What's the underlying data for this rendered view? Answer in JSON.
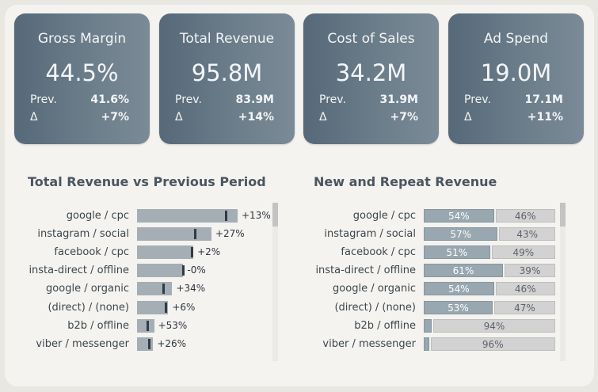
{
  "kpis": [
    {
      "title": "Gross Margin",
      "value": "44.5%",
      "prev_label": "Prev.",
      "prev_value": "41.6%",
      "delta_label": "Δ",
      "delta_value": "+7%"
    },
    {
      "title": "Total Revenue",
      "value": "95.8M",
      "prev_label": "Prev.",
      "prev_value": "83.9M",
      "delta_label": "Δ",
      "delta_value": "+14%"
    },
    {
      "title": "Cost of Sales",
      "value": "34.2M",
      "prev_label": "Prev.",
      "prev_value": "31.9M",
      "delta_label": "Δ",
      "delta_value": "+7%"
    },
    {
      "title": "Ad Spend",
      "value": "19.0M",
      "prev_label": "Prev.",
      "prev_value": "17.1M",
      "delta_label": "Δ",
      "delta_value": "+11%"
    }
  ],
  "revenue_chart": {
    "title": "Total Revenue vs Previous Period",
    "rows": [
      {
        "label": "google / cpc",
        "current": 1.0,
        "previous": 0.885,
        "delta": "+13%"
      },
      {
        "label": "instagram / social",
        "current": 0.74,
        "previous": 0.58,
        "delta": "+27%"
      },
      {
        "label": "facebook / cpc",
        "current": 0.56,
        "previous": 0.55,
        "delta": "+2%"
      },
      {
        "label": "insta-direct / offline",
        "current": 0.46,
        "previous": 0.46,
        "delta": "-0%"
      },
      {
        "label": "google / organic",
        "current": 0.35,
        "previous": 0.26,
        "delta": "+34%"
      },
      {
        "label": "(direct) / (none)",
        "current": 0.31,
        "previous": 0.29,
        "delta": "+6%"
      },
      {
        "label": "b2b / offline",
        "current": 0.17,
        "previous": 0.11,
        "delta": "+53%"
      },
      {
        "label": "viber / messenger",
        "current": 0.16,
        "previous": 0.125,
        "delta": "+26%"
      }
    ]
  },
  "split_chart": {
    "title": "New and Repeat Revenue",
    "rows": [
      {
        "label": "google / cpc",
        "new": 54,
        "new_text": "54%",
        "repeat": 46,
        "repeat_text": "46%"
      },
      {
        "label": "instagram / social",
        "new": 57,
        "new_text": "57%",
        "repeat": 43,
        "repeat_text": "43%"
      },
      {
        "label": "facebook / cpc",
        "new": 51,
        "new_text": "51%",
        "repeat": 49,
        "repeat_text": "49%"
      },
      {
        "label": "insta-direct / offline",
        "new": 61,
        "new_text": "61%",
        "repeat": 39,
        "repeat_text": "39%"
      },
      {
        "label": "google / organic",
        "new": 54,
        "new_text": "54%",
        "repeat": 46,
        "repeat_text": "46%"
      },
      {
        "label": "(direct) / (none)",
        "new": 53,
        "new_text": "53%",
        "repeat": 47,
        "repeat_text": "47%"
      },
      {
        "label": "b2b / offline",
        "new": 6,
        "new_text": "",
        "repeat": 94,
        "repeat_text": "94%"
      },
      {
        "label": "viber / messenger",
        "new": 4,
        "new_text": "",
        "repeat": 96,
        "repeat_text": "96%"
      }
    ]
  }
}
